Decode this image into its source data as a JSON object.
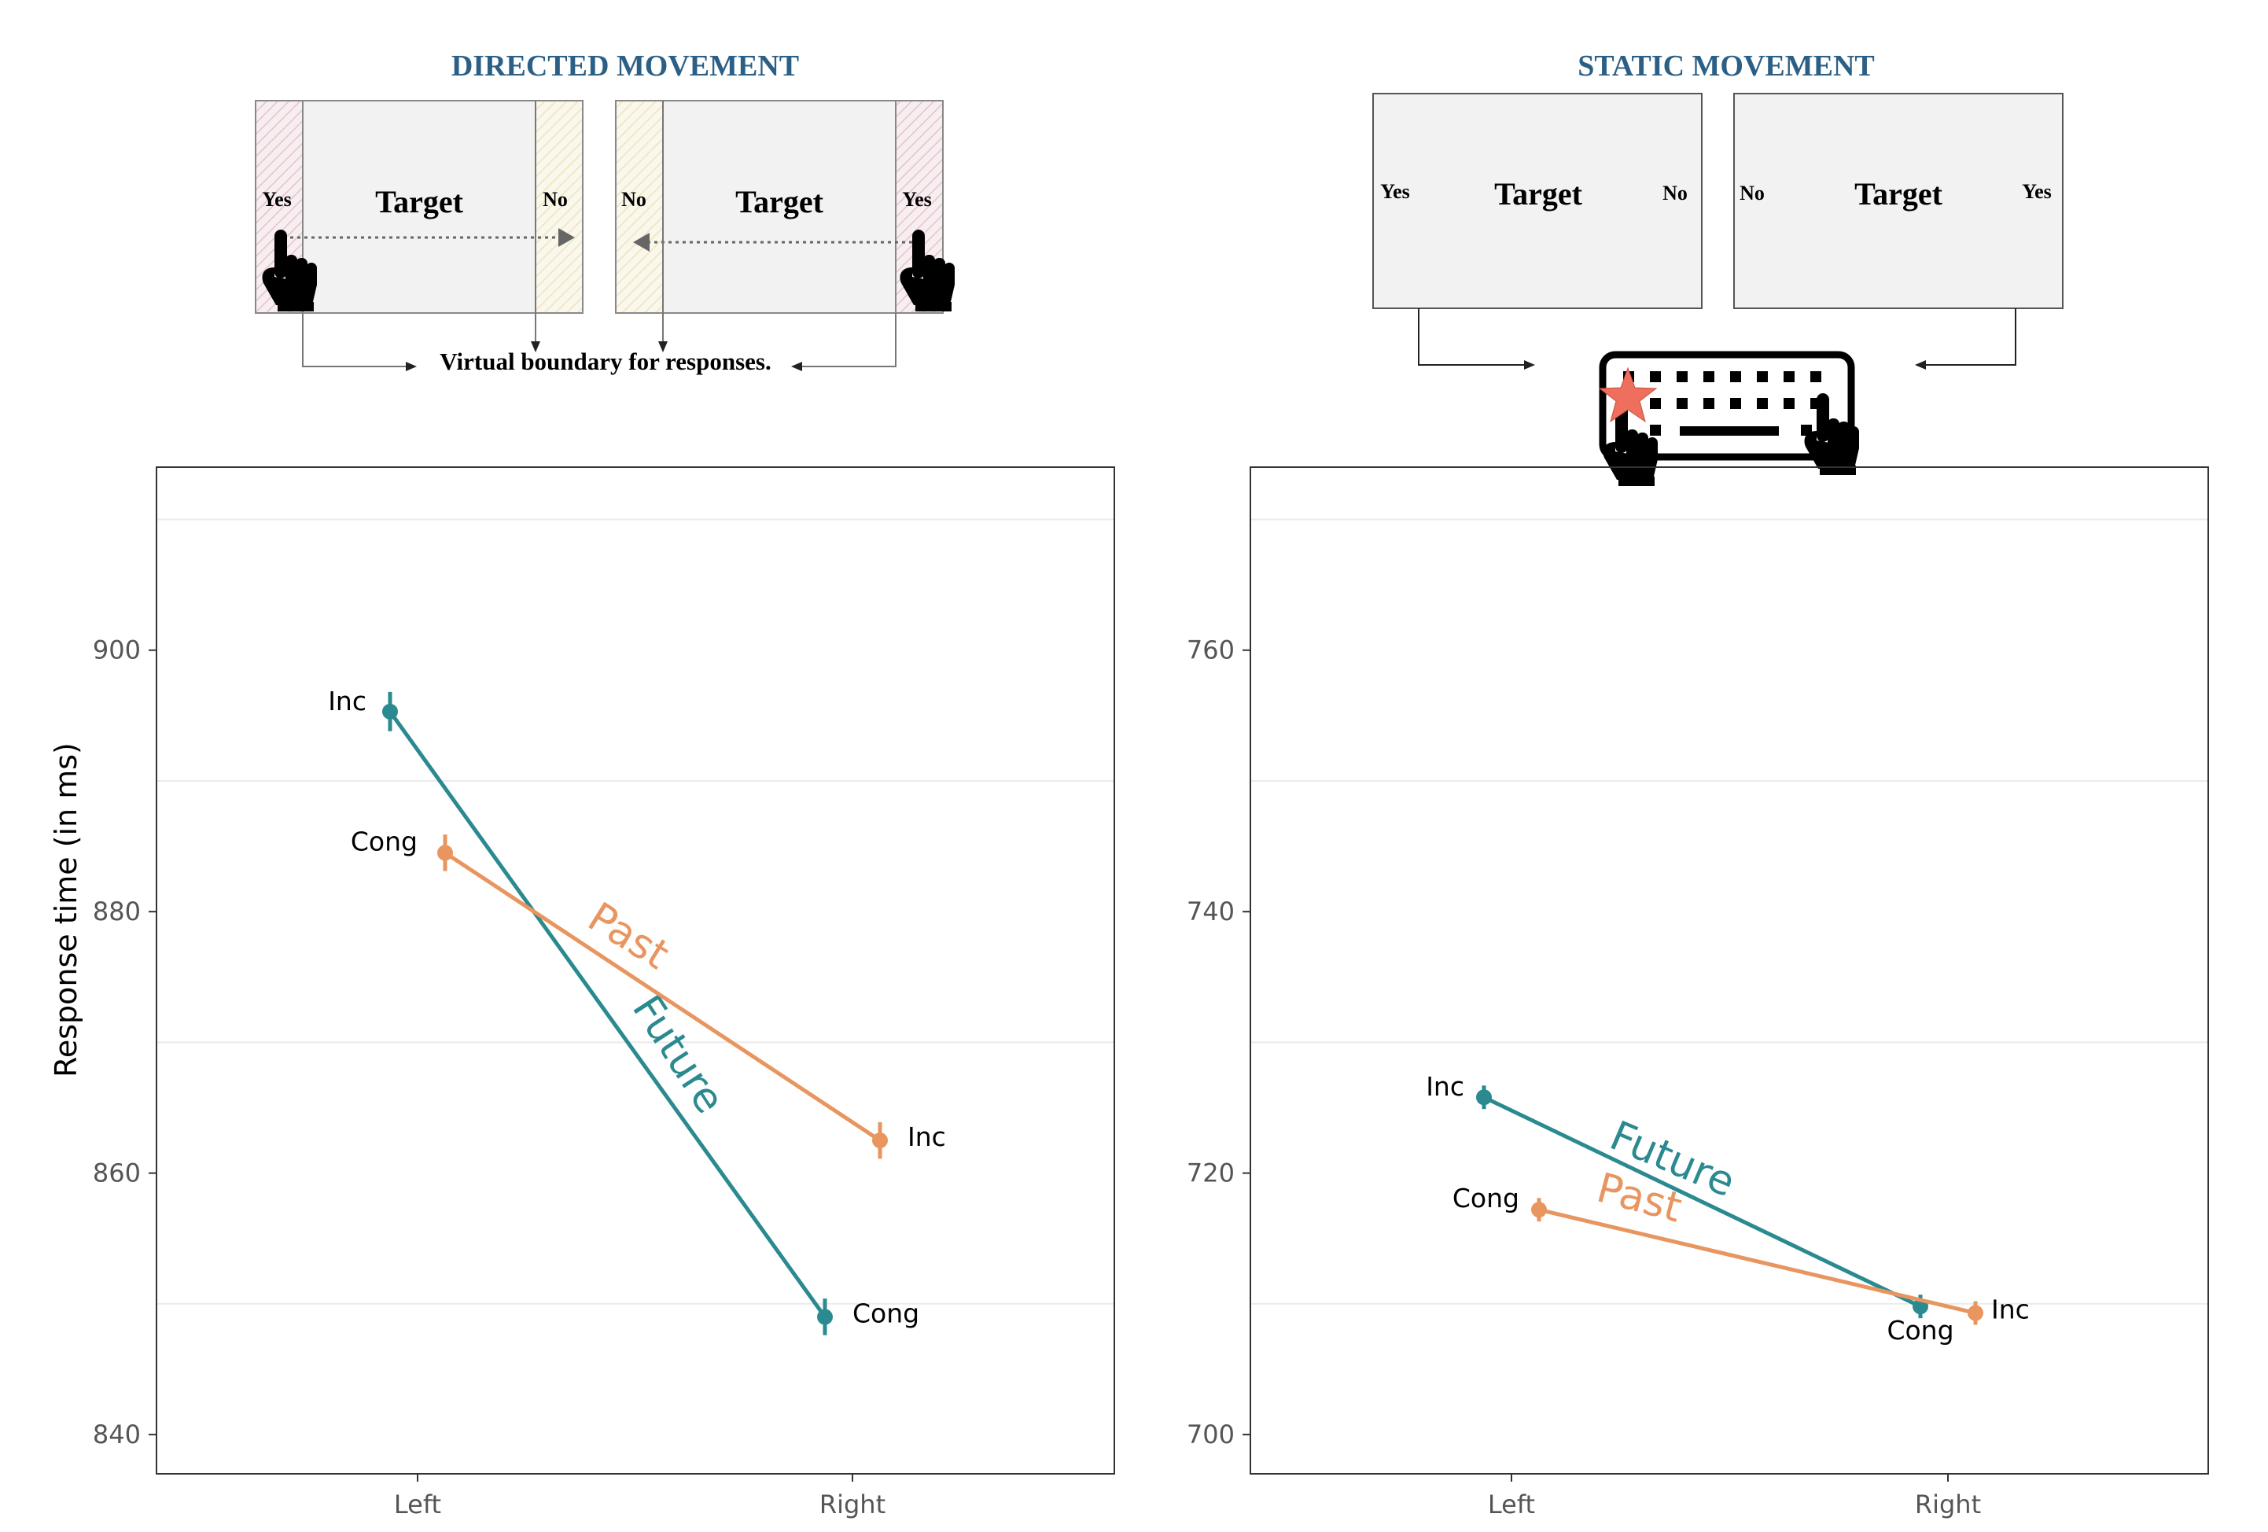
{
  "panels": {
    "left": {
      "heading": "DIRECTED  MOVEMENT",
      "screens": [
        {
          "left_label": "Yes",
          "center_label": "Target",
          "right_label": "No"
        },
        {
          "left_label": "No",
          "center_label": "Target",
          "right_label": "Yes"
        }
      ],
      "boundary_label": "Virtual boundary for responses."
    },
    "right": {
      "heading": "STATIC MOVEMENT",
      "screens": [
        {
          "left_label": "Yes",
          "center_label": "Target",
          "right_label": "No"
        },
        {
          "left_label": "No",
          "center_label": "Target",
          "right_label": "Yes"
        }
      ]
    }
  },
  "colors": {
    "heading": "#2c5f86",
    "future": "#2a8a8f",
    "past": "#e8955f",
    "star": "#ef6f5e",
    "axis_text": "#555555"
  },
  "chart_data": [
    {
      "type": "line",
      "ylabel": "Response time (in ms)",
      "categories": [
        "Left",
        "Right"
      ],
      "ylim": [
        837,
        914
      ],
      "yticks": [
        840,
        860,
        880,
        900
      ],
      "grid": true,
      "series": [
        {
          "name": "Future",
          "values": [
            895.3,
            849.0
          ],
          "errors": [
            1.5,
            1.4
          ],
          "point_labels": [
            "Inc",
            "Cong"
          ]
        },
        {
          "name": "Past",
          "values": [
            884.5,
            862.5
          ],
          "errors": [
            1.4,
            1.4
          ],
          "point_labels": [
            "Cong",
            "Inc"
          ]
        }
      ]
    },
    {
      "type": "line",
      "ylabel": "",
      "categories": [
        "Left",
        "Right"
      ],
      "ylim": [
        697,
        774
      ],
      "yticks": [
        700,
        720,
        740,
        760
      ],
      "grid": true,
      "series": [
        {
          "name": "Future",
          "values": [
            725.8,
            709.8
          ],
          "errors": [
            0.9,
            0.9
          ],
          "point_labels": [
            "Inc",
            "Cong"
          ]
        },
        {
          "name": "Past",
          "values": [
            717.2,
            709.3
          ],
          "errors": [
            0.9,
            0.9
          ],
          "point_labels": [
            "Cong",
            "Inc"
          ]
        }
      ]
    }
  ]
}
